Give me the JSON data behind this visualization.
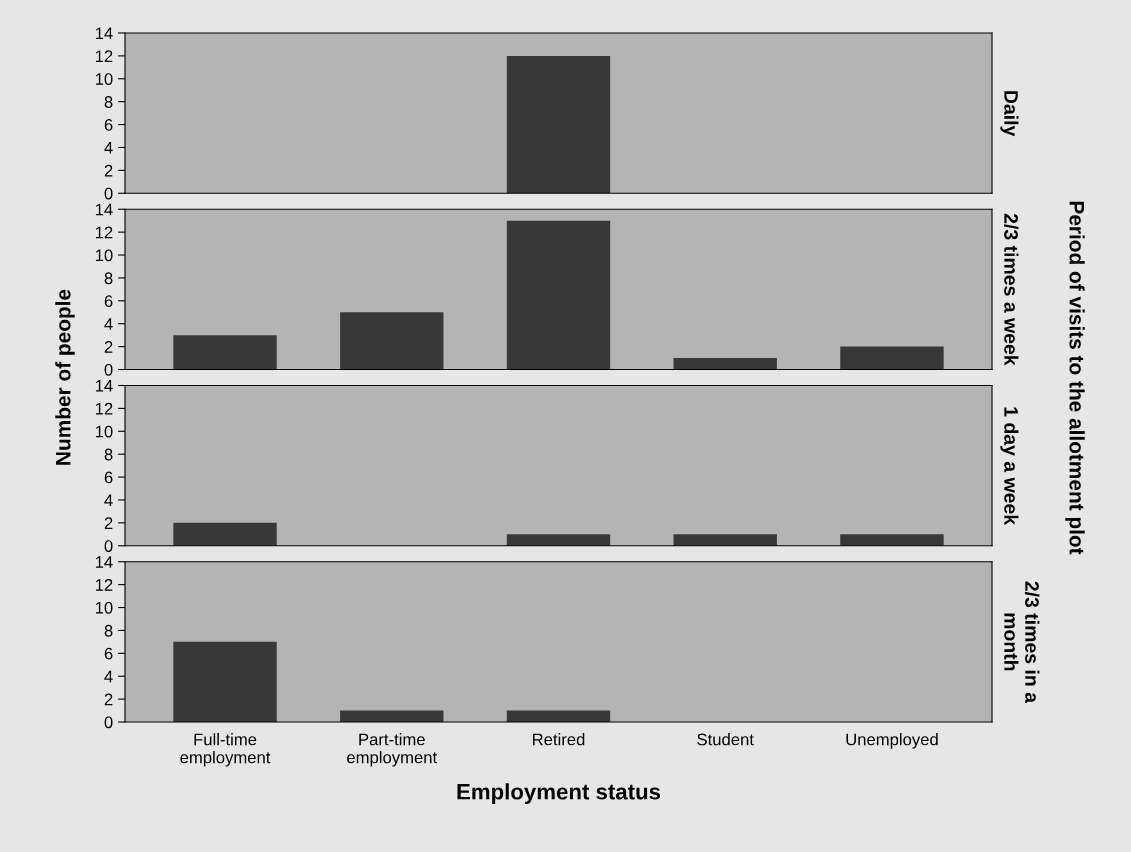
{
  "chart_data": [
    {
      "type": "bar",
      "y2label": "Daily",
      "ylabel": "Number of people",
      "annotations": [
        "Period of visits to the allotment plot"
      ],
      "categories": [
        null,
        null,
        null,
        null,
        null
      ],
      "values": [
        0,
        0,
        12,
        0,
        0
      ],
      "color": "#383838",
      "ylim": [
        0,
        14
      ],
      "yticks": [
        0,
        2,
        4,
        6,
        8,
        10,
        12,
        14
      ],
      "grid": false,
      "legend": false,
      "tick_labels": "y"
    },
    {
      "type": "bar",
      "y2label": "2/3 times a week",
      "categories": [
        null,
        null,
        null,
        null,
        null
      ],
      "values": [
        3,
        5,
        13,
        1,
        2
      ],
      "color": "#383838",
      "ylim": [
        0,
        14
      ],
      "yticks": [
        0,
        2,
        4,
        6,
        8,
        10,
        12,
        14
      ],
      "grid": false,
      "legend": false,
      "tick_labels": "y"
    },
    {
      "type": "bar",
      "y2label": "1 day a week",
      "categories": [
        null,
        null,
        null,
        null,
        null
      ],
      "values": [
        2,
        0,
        1,
        1,
        1
      ],
      "color": "#383838",
      "ylim": [
        0,
        14
      ],
      "yticks": [
        0,
        2,
        4,
        6,
        8,
        10,
        12,
        14
      ],
      "grid": false,
      "legend": false,
      "tick_labels": "y"
    },
    {
      "type": "bar",
      "y2label": "2/3 times in a\nmonth",
      "xlabel": "Employment status",
      "categories": [
        "Full-time\nemployment",
        "Part-time\nemployment",
        "Retired",
        "Student",
        "Unemployed"
      ],
      "values": [
        7,
        1,
        1,
        0,
        0
      ],
      "color": "#383838",
      "ylim": [
        0,
        14
      ],
      "yticks": [
        0,
        2,
        4,
        6,
        8,
        10,
        12,
        14
      ],
      "grid": false,
      "legend": false
    }
  ]
}
